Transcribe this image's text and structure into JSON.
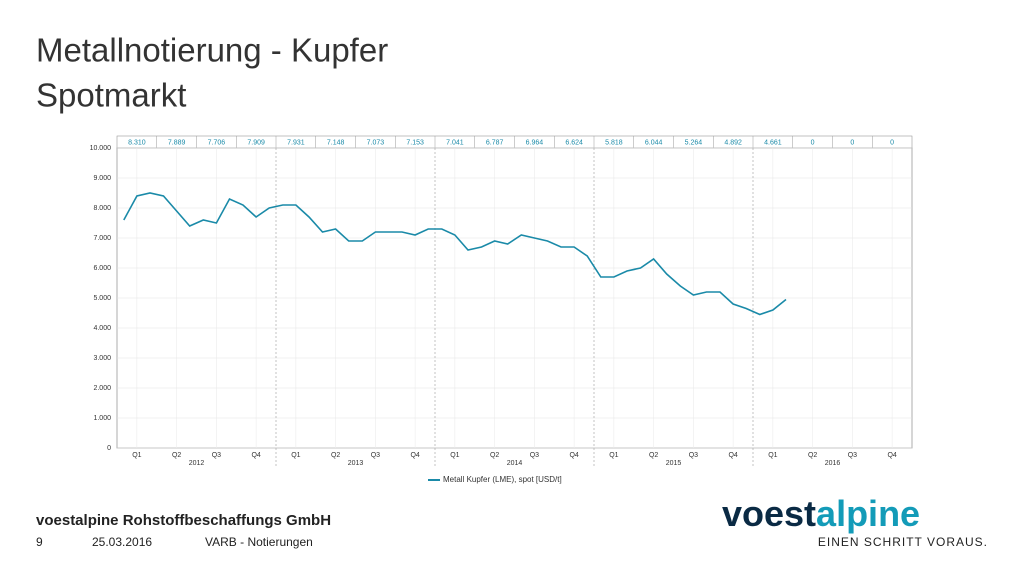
{
  "slide": {
    "title_lines": [
      "Metallnotierung - Kupfer",
      "Spotmarkt"
    ],
    "company": "voestalpine Rohstoffbeschaffungs GmbH",
    "page": "9",
    "date": "25.03.2016",
    "section": "VARB - Notierungen",
    "logo": [
      "voest",
      "alpine"
    ],
    "tagline": "EINEN SCHRITT VORAUS."
  },
  "chart_data": {
    "type": "line",
    "quarter_table": [
      "8.310",
      "7.889",
      "7.706",
      "7.909",
      "7.931",
      "7.148",
      "7.073",
      "7.153",
      "7.041",
      "6.787",
      "6.964",
      "6.624",
      "5.818",
      "6.044",
      "5.264",
      "4.892",
      "4.661",
      "0",
      "0",
      "0"
    ],
    "xlim": [
      0,
      20
    ],
    "xticks": [
      {
        "value": 0.5,
        "label": "Q1"
      },
      {
        "value": 1.5,
        "label": "Q2"
      },
      {
        "value": 2.5,
        "label": "Q3"
      },
      {
        "value": 3.5,
        "label": "Q4"
      },
      {
        "value": 4.5,
        "label": "Q1"
      },
      {
        "value": 5.5,
        "label": "Q2"
      },
      {
        "value": 6.5,
        "label": "Q3"
      },
      {
        "value": 7.5,
        "label": "Q4"
      },
      {
        "value": 8.5,
        "label": "Q1"
      },
      {
        "value": 9.5,
        "label": "Q2"
      },
      {
        "value": 10.5,
        "label": "Q3"
      },
      {
        "value": 11.5,
        "label": "Q4"
      },
      {
        "value": 12.5,
        "label": "Q1"
      },
      {
        "value": 13.5,
        "label": "Q2"
      },
      {
        "value": 14.5,
        "label": "Q3"
      },
      {
        "value": 15.5,
        "label": "Q4"
      },
      {
        "value": 16.5,
        "label": "Q1"
      },
      {
        "value": 17.5,
        "label": "Q2"
      },
      {
        "value": 18.5,
        "label": "Q3"
      },
      {
        "value": 19.5,
        "label": "Q4"
      }
    ],
    "years": [
      {
        "value": 2,
        "label": "2012"
      },
      {
        "value": 6,
        "label": "2013"
      },
      {
        "value": 10,
        "label": "2014"
      },
      {
        "value": 14,
        "label": "2015"
      },
      {
        "value": 18,
        "label": "2016"
      }
    ],
    "ylim": [
      0,
      10000
    ],
    "yticks": [
      {
        "value": 0,
        "label": "0"
      },
      {
        "value": 1000,
        "label": "1.000"
      },
      {
        "value": 2000,
        "label": "2.000"
      },
      {
        "value": 3000,
        "label": "3.000"
      },
      {
        "value": 4000,
        "label": "4.000"
      },
      {
        "value": 5000,
        "label": "5.000"
      },
      {
        "value": 6000,
        "label": "6.000"
      },
      {
        "value": 7000,
        "label": "7.000"
      },
      {
        "value": 8000,
        "label": "8.000"
      },
      {
        "value": 9000,
        "label": "9.000"
      },
      {
        "value": 10000,
        "label": "10.000"
      }
    ],
    "grid": true,
    "x": [
      0.17,
      0.5,
      0.83,
      1.17,
      1.5,
      1.83,
      2.17,
      2.5,
      2.83,
      3.17,
      3.5,
      3.83,
      4.17,
      4.5,
      4.83,
      5.17,
      5.5,
      5.83,
      6.17,
      6.5,
      6.83,
      7.17,
      7.5,
      7.83,
      8.17,
      8.5,
      8.83,
      9.17,
      9.5,
      9.83,
      10.17,
      10.5,
      10.83,
      11.17,
      11.5,
      11.83,
      12.17,
      12.5,
      12.83,
      13.17,
      13.5,
      13.83,
      14.17,
      14.5,
      14.83,
      15.17,
      15.5,
      15.83,
      16.17,
      16.5,
      16.83
    ],
    "series": [
      {
        "name": "Metall Kupfer (LME), spot [USD/t]",
        "color": "#1a8aa8",
        "values": [
          7600,
          8400,
          8500,
          8400,
          7900,
          7400,
          7600,
          7500,
          8300,
          8100,
          7700,
          8000,
          8100,
          8100,
          7700,
          7200,
          7300,
          6900,
          6900,
          7200,
          7200,
          7200,
          7100,
          7300,
          7300,
          7100,
          6600,
          6700,
          6900,
          6800,
          7100,
          7000,
          6900,
          6700,
          6700,
          6400,
          5700,
          5700,
          5900,
          6000,
          6300,
          5800,
          5400,
          5100,
          5200,
          5200,
          4800,
          4650,
          4450,
          4600,
          4950
        ]
      }
    ]
  }
}
